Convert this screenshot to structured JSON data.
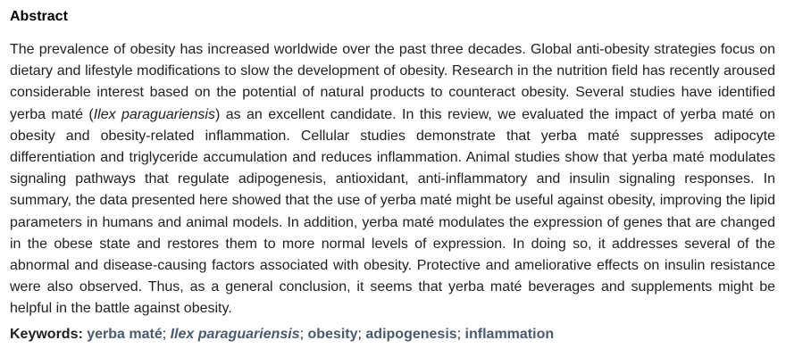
{
  "abstract": {
    "heading": "Abstract",
    "text_1": "The prevalence of obesity has increased worldwide over the past three decades. Global anti-obesity strategies focus on dietary and lifestyle modifications to slow the development of obesity. Research in the nutrition field has recently aroused considerable interest based on the potential of natural products to counteract obesity. Several studies have identified yerba maté (",
    "species_italic": "Ilex paraguariensis",
    "text_2": ") as an excellent candidate. In this review, we evaluated the impact of yerba maté on obesity and obesity-related inflammation. Cellular studies demonstrate that yerba maté suppresses adipocyte differentiation and triglyceride accumulation and reduces inflammation. Animal studies show that yerba maté modulates signaling pathways that regulate adipogenesis, antioxidant, anti-inflammatory and insulin signaling responses. In summary, the data presented here showed that the use of yerba maté might be useful against obesity, improving the lipid parameters in humans and animal models. In addition, yerba maté modulates the expression of genes that are changed in the obese state and restores them to more normal levels of expression. In doing so, it addresses several of the abnormal and disease-causing factors associated with obesity. Protective and ameliorative effects on insulin resistance were also observed. Thus, as a general conclusion, it seems that yerba maté beverages and supplements might be helpful in the battle against obesity."
  },
  "keywords": {
    "label": "Keywords:",
    "items": [
      {
        "text": "yerba maté",
        "italic": false
      },
      {
        "text": "Ilex paraguariensis",
        "italic": true
      },
      {
        "text": "obesity",
        "italic": false
      },
      {
        "text": "adipogenesis",
        "italic": false
      },
      {
        "text": "inflammation",
        "italic": false
      }
    ],
    "separator": "; "
  },
  "colors": {
    "keyword_link": "#4a5a6e",
    "body_text": "#212121"
  }
}
